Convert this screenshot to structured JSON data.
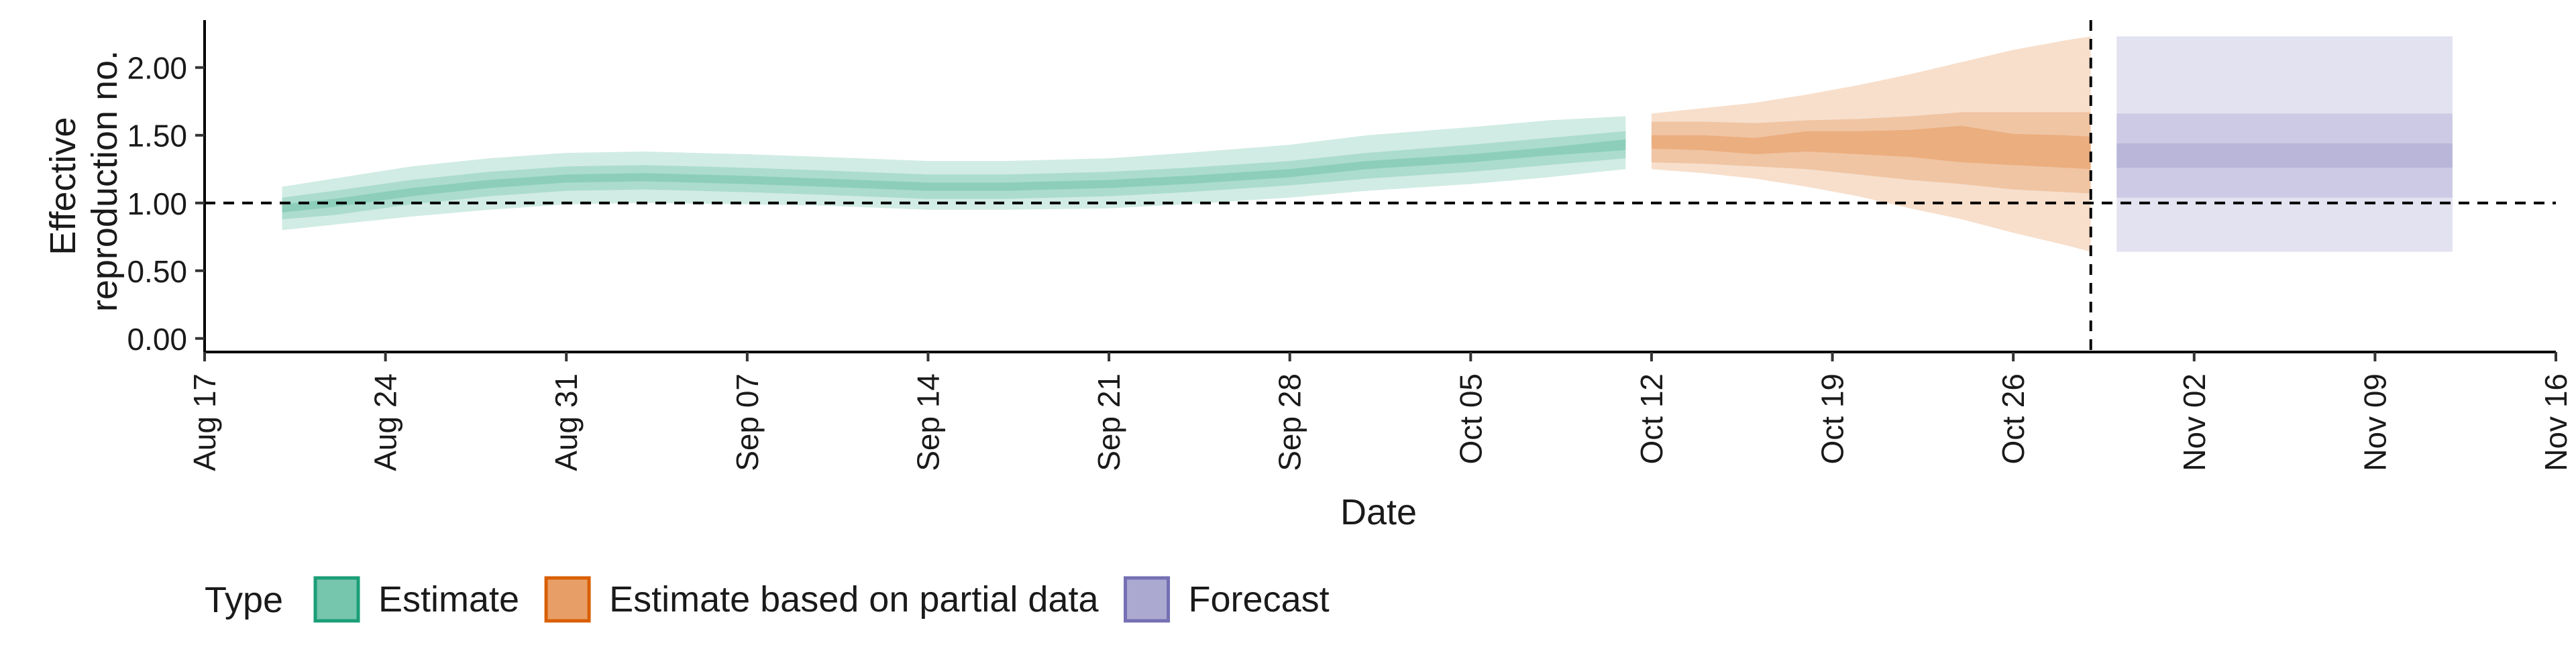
{
  "chart_data": {
    "type": "area",
    "title": "",
    "xlabel": "Date",
    "ylabel_lines": [
      "Effective",
      "reproduction no."
    ],
    "ylim": [
      -0.1,
      2.35
    ],
    "yticks": [
      0.0,
      0.5,
      1.0,
      1.5,
      2.0
    ],
    "ytick_labels": [
      "0.00",
      "0.50",
      "1.00",
      "1.50",
      "2.00"
    ],
    "xlim": [
      "2020-08-17",
      "2020-11-16"
    ],
    "xticks": [
      "2020-08-17",
      "2020-08-24",
      "2020-08-31",
      "2020-09-07",
      "2020-09-14",
      "2020-09-21",
      "2020-09-28",
      "2020-10-05",
      "2020-10-12",
      "2020-10-19",
      "2020-10-26",
      "2020-11-02",
      "2020-11-09",
      "2020-11-16"
    ],
    "xtick_labels": [
      "Aug 17",
      "Aug 24",
      "Aug 31",
      "Sep 07",
      "Sep 14",
      "Sep 21",
      "Sep 28",
      "Oct 05",
      "Oct 12",
      "Oct 19",
      "Oct 26",
      "Nov 02",
      "Nov 09",
      "Nov 16"
    ],
    "reference_hline": 1.0,
    "reference_vline": "2020-10-29",
    "grid": false,
    "legend": {
      "title": "Type",
      "placement": "bottom",
      "entries": [
        {
          "label": "Estimate",
          "color": "#1b9e77"
        },
        {
          "label": "Estimate based on partial data",
          "color": "#d95f02"
        },
        {
          "label": "Forecast",
          "color": "#7570b3"
        }
      ]
    },
    "series": [
      {
        "name": "Estimate",
        "color": "#1b9e77",
        "x": [
          "2020-08-20",
          "2020-08-22",
          "2020-08-25",
          "2020-08-28",
          "2020-08-31",
          "2020-09-03",
          "2020-09-07",
          "2020-09-10",
          "2020-09-14",
          "2020-09-17",
          "2020-09-21",
          "2020-09-24",
          "2020-09-28",
          "2020-10-01",
          "2020-10-05",
          "2020-10-08",
          "2020-10-11"
        ],
        "median": [
          0.96,
          1.0,
          1.08,
          1.14,
          1.18,
          1.19,
          1.17,
          1.15,
          1.12,
          1.12,
          1.14,
          1.17,
          1.22,
          1.28,
          1.33,
          1.38,
          1.43
        ],
        "inner_lower": [
          0.93,
          0.97,
          1.05,
          1.11,
          1.15,
          1.16,
          1.14,
          1.12,
          1.09,
          1.09,
          1.11,
          1.14,
          1.19,
          1.25,
          1.3,
          1.35,
          1.39
        ],
        "inner_upper": [
          0.99,
          1.03,
          1.11,
          1.17,
          1.21,
          1.22,
          1.2,
          1.18,
          1.15,
          1.15,
          1.17,
          1.2,
          1.25,
          1.31,
          1.36,
          1.41,
          1.47
        ],
        "middle_lower": [
          0.88,
          0.91,
          0.99,
          1.05,
          1.09,
          1.1,
          1.08,
          1.06,
          1.03,
          1.03,
          1.05,
          1.08,
          1.13,
          1.18,
          1.23,
          1.28,
          1.33
        ],
        "middle_upper": [
          1.04,
          1.09,
          1.17,
          1.23,
          1.27,
          1.28,
          1.26,
          1.24,
          1.21,
          1.21,
          1.23,
          1.26,
          1.31,
          1.37,
          1.43,
          1.48,
          1.53
        ],
        "outer_lower": [
          0.8,
          0.84,
          0.9,
          0.95,
          0.99,
          1.0,
          0.99,
          0.98,
          0.95,
          0.95,
          0.96,
          0.99,
          1.04,
          1.09,
          1.14,
          1.19,
          1.25
        ],
        "outer_upper": [
          1.12,
          1.18,
          1.27,
          1.33,
          1.37,
          1.38,
          1.36,
          1.34,
          1.31,
          1.31,
          1.33,
          1.37,
          1.43,
          1.5,
          1.56,
          1.61,
          1.64
        ]
      },
      {
        "name": "Estimate based on partial data",
        "color": "#d95f02",
        "x": [
          "2020-10-12",
          "2020-10-14",
          "2020-10-16",
          "2020-10-18",
          "2020-10-20",
          "2020-10-22",
          "2020-10-24",
          "2020-10-26",
          "2020-10-28",
          "2020-10-29"
        ],
        "median": [
          1.45,
          1.44,
          1.42,
          1.46,
          1.45,
          1.46,
          1.45,
          1.4,
          1.38,
          1.37
        ],
        "inner_lower": [
          1.4,
          1.39,
          1.36,
          1.38,
          1.36,
          1.34,
          1.3,
          1.28,
          1.26,
          1.25
        ],
        "inner_upper": [
          1.5,
          1.5,
          1.48,
          1.53,
          1.53,
          1.54,
          1.57,
          1.51,
          1.5,
          1.49
        ],
        "middle_lower": [
          1.3,
          1.29,
          1.27,
          1.25,
          1.21,
          1.17,
          1.14,
          1.1,
          1.08,
          1.07
        ],
        "middle_upper": [
          1.6,
          1.6,
          1.59,
          1.61,
          1.62,
          1.64,
          1.67,
          1.67,
          1.67,
          1.67
        ],
        "outer_lower": [
          1.25,
          1.22,
          1.18,
          1.12,
          1.05,
          0.96,
          0.88,
          0.78,
          0.69,
          0.64
        ],
        "outer_upper": [
          1.66,
          1.7,
          1.74,
          1.8,
          1.87,
          1.95,
          2.04,
          2.13,
          2.2,
          2.23
        ]
      },
      {
        "name": "Forecast",
        "color": "#7570b3",
        "x": [
          "2020-10-30",
          "2020-11-12"
        ],
        "median": [
          1.35,
          1.35
        ],
        "inner_lower": [
          1.26,
          1.26
        ],
        "inner_upper": [
          1.44,
          1.44
        ],
        "middle_lower": [
          1.04,
          1.04
        ],
        "middle_upper": [
          1.66,
          1.66
        ],
        "outer_lower": [
          0.64,
          0.64
        ],
        "outer_upper": [
          2.23,
          2.23
        ]
      }
    ]
  }
}
